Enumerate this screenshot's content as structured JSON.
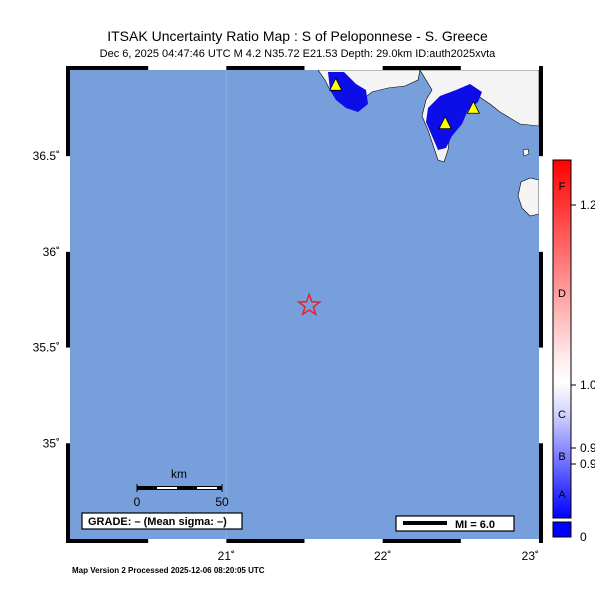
{
  "title": "ITSAK Uncertainty Ratio Map : S of Peloponnese - S. Greece",
  "subtitle": "Dec  6, 2025 04:47:46 UTC   M 4.2   N35.72 E21.53   Depth: 29.0km   ID:auth2025xvta",
  "footer": "Map Version 2 Processed 2025-12-06 08:20:05 UTC",
  "map": {
    "lon_range": [
      20.0,
      23.0
    ],
    "lat_range": [
      34.5,
      36.95
    ],
    "lon_ticks": [
      {
        "v": 21,
        "label": "21˚"
      },
      {
        "v": 22,
        "label": "22˚"
      },
      {
        "v": 23,
        "label": "23˚"
      }
    ],
    "lat_ticks": [
      {
        "v": 36.5,
        "label": "36.5˚"
      },
      {
        "v": 36,
        "label": "36˚"
      },
      {
        "v": 35.5,
        "label": "35.5˚"
      },
      {
        "v": 35,
        "label": "35˚"
      }
    ],
    "sea_color": "#779fdc",
    "land_color": "#f4f4f4",
    "high_color": "#0d0de8",
    "epicenter": {
      "lon": 21.53,
      "lat": 35.72,
      "color": "#e8222a"
    },
    "stations": [
      {
        "lon": 21.7,
        "lat": 36.87
      },
      {
        "lon": 22.4,
        "lat": 36.67
      },
      {
        "lon": 22.58,
        "lat": 36.75
      }
    ]
  },
  "scale_bar": {
    "unit": "km",
    "start": "0",
    "end": "50"
  },
  "grade_text": "GRADE: – (Mean sigma: –)",
  "mi_text": "MI = 6.0",
  "colorbar": {
    "grades": [
      "F",
      "D",
      "C",
      "B",
      "A"
    ],
    "values": [
      "1.2",
      "1.0",
      "0.9",
      "0.9",
      "0"
    ],
    "gradient": [
      "#ff0000",
      "#ffffff",
      "#0000ff"
    ]
  }
}
